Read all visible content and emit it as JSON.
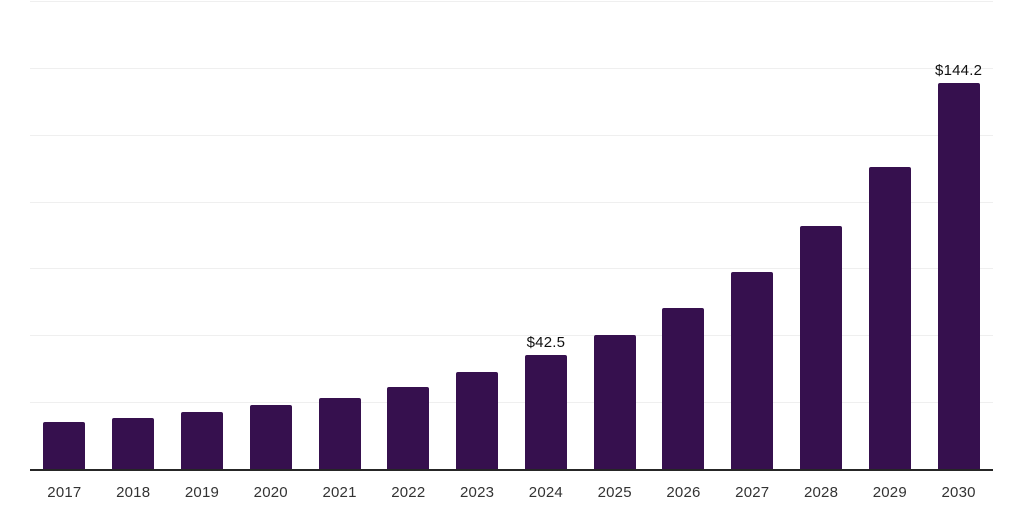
{
  "chart_data": {
    "type": "bar",
    "title": "",
    "xlabel": "",
    "ylabel": "",
    "categories": [
      "2017",
      "2018",
      "2019",
      "2020",
      "2021",
      "2022",
      "2023",
      "2024",
      "2025",
      "2026",
      "2027",
      "2028",
      "2029",
      "2030"
    ],
    "values": [
      17.5,
      19.1,
      21.5,
      24.1,
      26.6,
      30.7,
      36.2,
      42.5,
      50.2,
      60.2,
      73.5,
      90.7,
      113.1,
      144.2
    ],
    "data_labels": {
      "2024": "$42.5",
      "2030": "$144.2"
    },
    "ylim": [
      0,
      175
    ],
    "gridline_step": 25,
    "grid": "horizontal-only",
    "legend": "none",
    "y_axis_tick_labels_visible": false,
    "colors": {
      "bar": "#36104E",
      "axis": "#262626",
      "gridline": "#efefef",
      "tick_label": "#333333",
      "data_label": "#111111",
      "background": "#ffffff"
    }
  }
}
